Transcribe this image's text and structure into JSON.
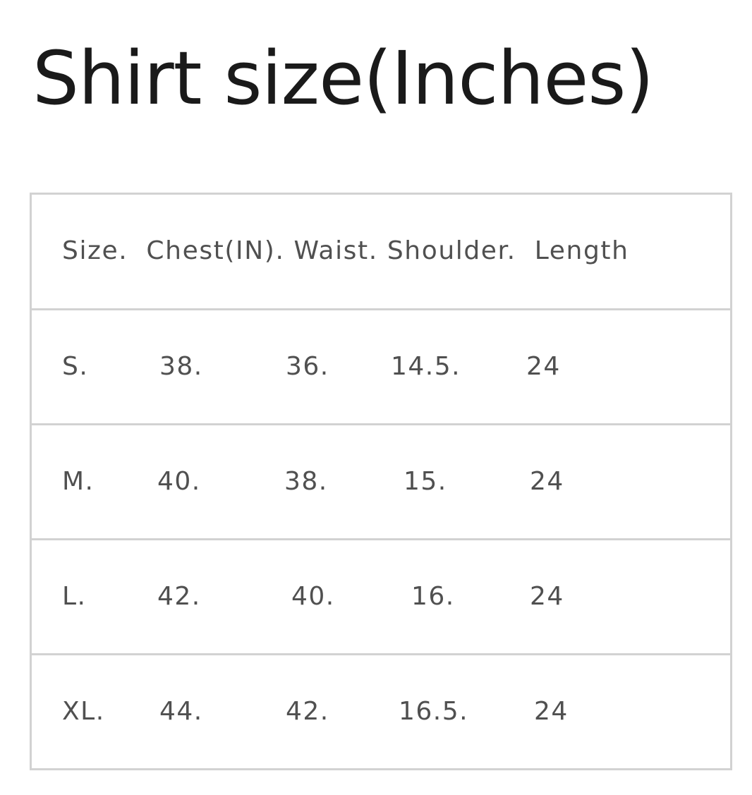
{
  "title": "Shirt size(Inches)",
  "table": {
    "header": "Size.  Chest(IN). Waist. Shoulder.  Length",
    "rows": [
      [
        "S.",
        "38.",
        "36.",
        "14.5.",
        "24"
      ],
      [
        "M.",
        "40.",
        "38.",
        "15.",
        "24"
      ],
      [
        "L.",
        "42.",
        "40.",
        "16.",
        "24"
      ],
      [
        "XL.",
        "44.",
        "42.",
        "16.5.",
        "24"
      ]
    ]
  },
  "colors": {
    "text": "#505050",
    "title": "#1a1a1a",
    "border": "#d2d2d2"
  }
}
